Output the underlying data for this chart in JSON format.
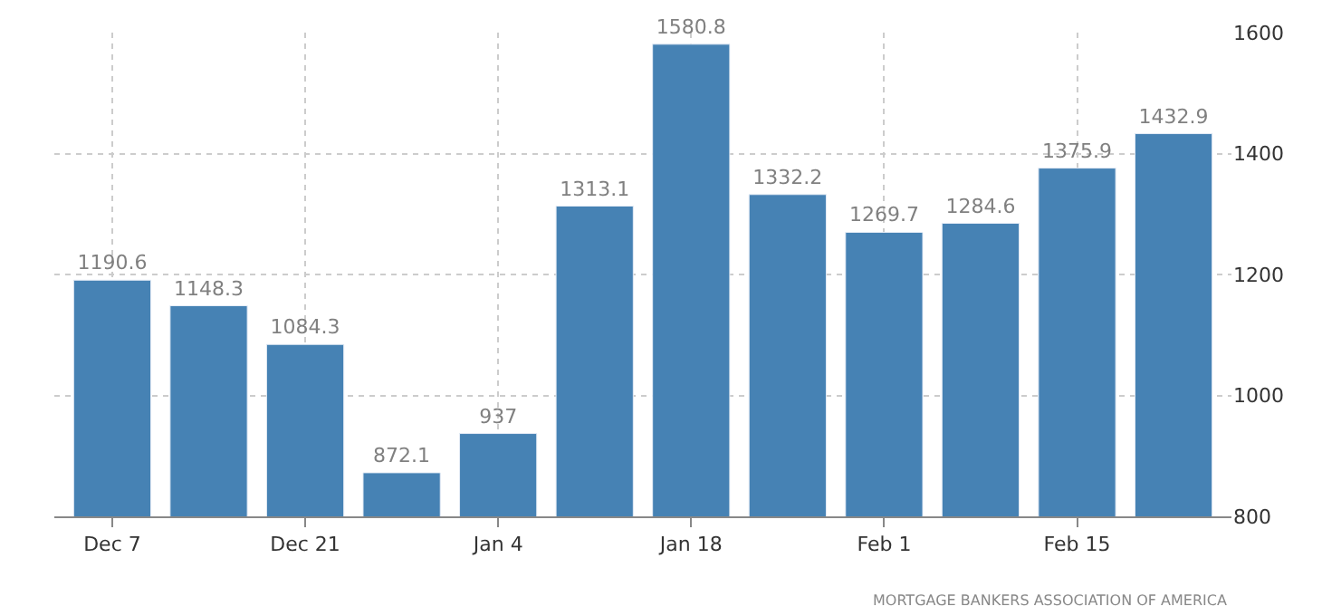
{
  "chart_data": {
    "type": "bar",
    "categories": [
      "Dec 7",
      null,
      "Dec 21",
      null,
      "Jan 4",
      null,
      "Jan 18",
      null,
      "Feb 1",
      null,
      "Feb 15",
      null
    ],
    "values": [
      1190.6,
      1148.3,
      1084.3,
      872.1,
      937,
      1313.1,
      1580.8,
      1332.2,
      1269.7,
      1284.6,
      1375.9,
      1432.9
    ],
    "color": "#4682b4",
    "ylim": [
      800,
      1600
    ],
    "yticks": [
      800,
      1000,
      1200,
      1400,
      1600
    ],
    "grid": true,
    "data_labels": true,
    "legend": false,
    "annotations": [
      "MORTGAGE BANKERS ASSOCIATION OF AMERICA"
    ]
  }
}
